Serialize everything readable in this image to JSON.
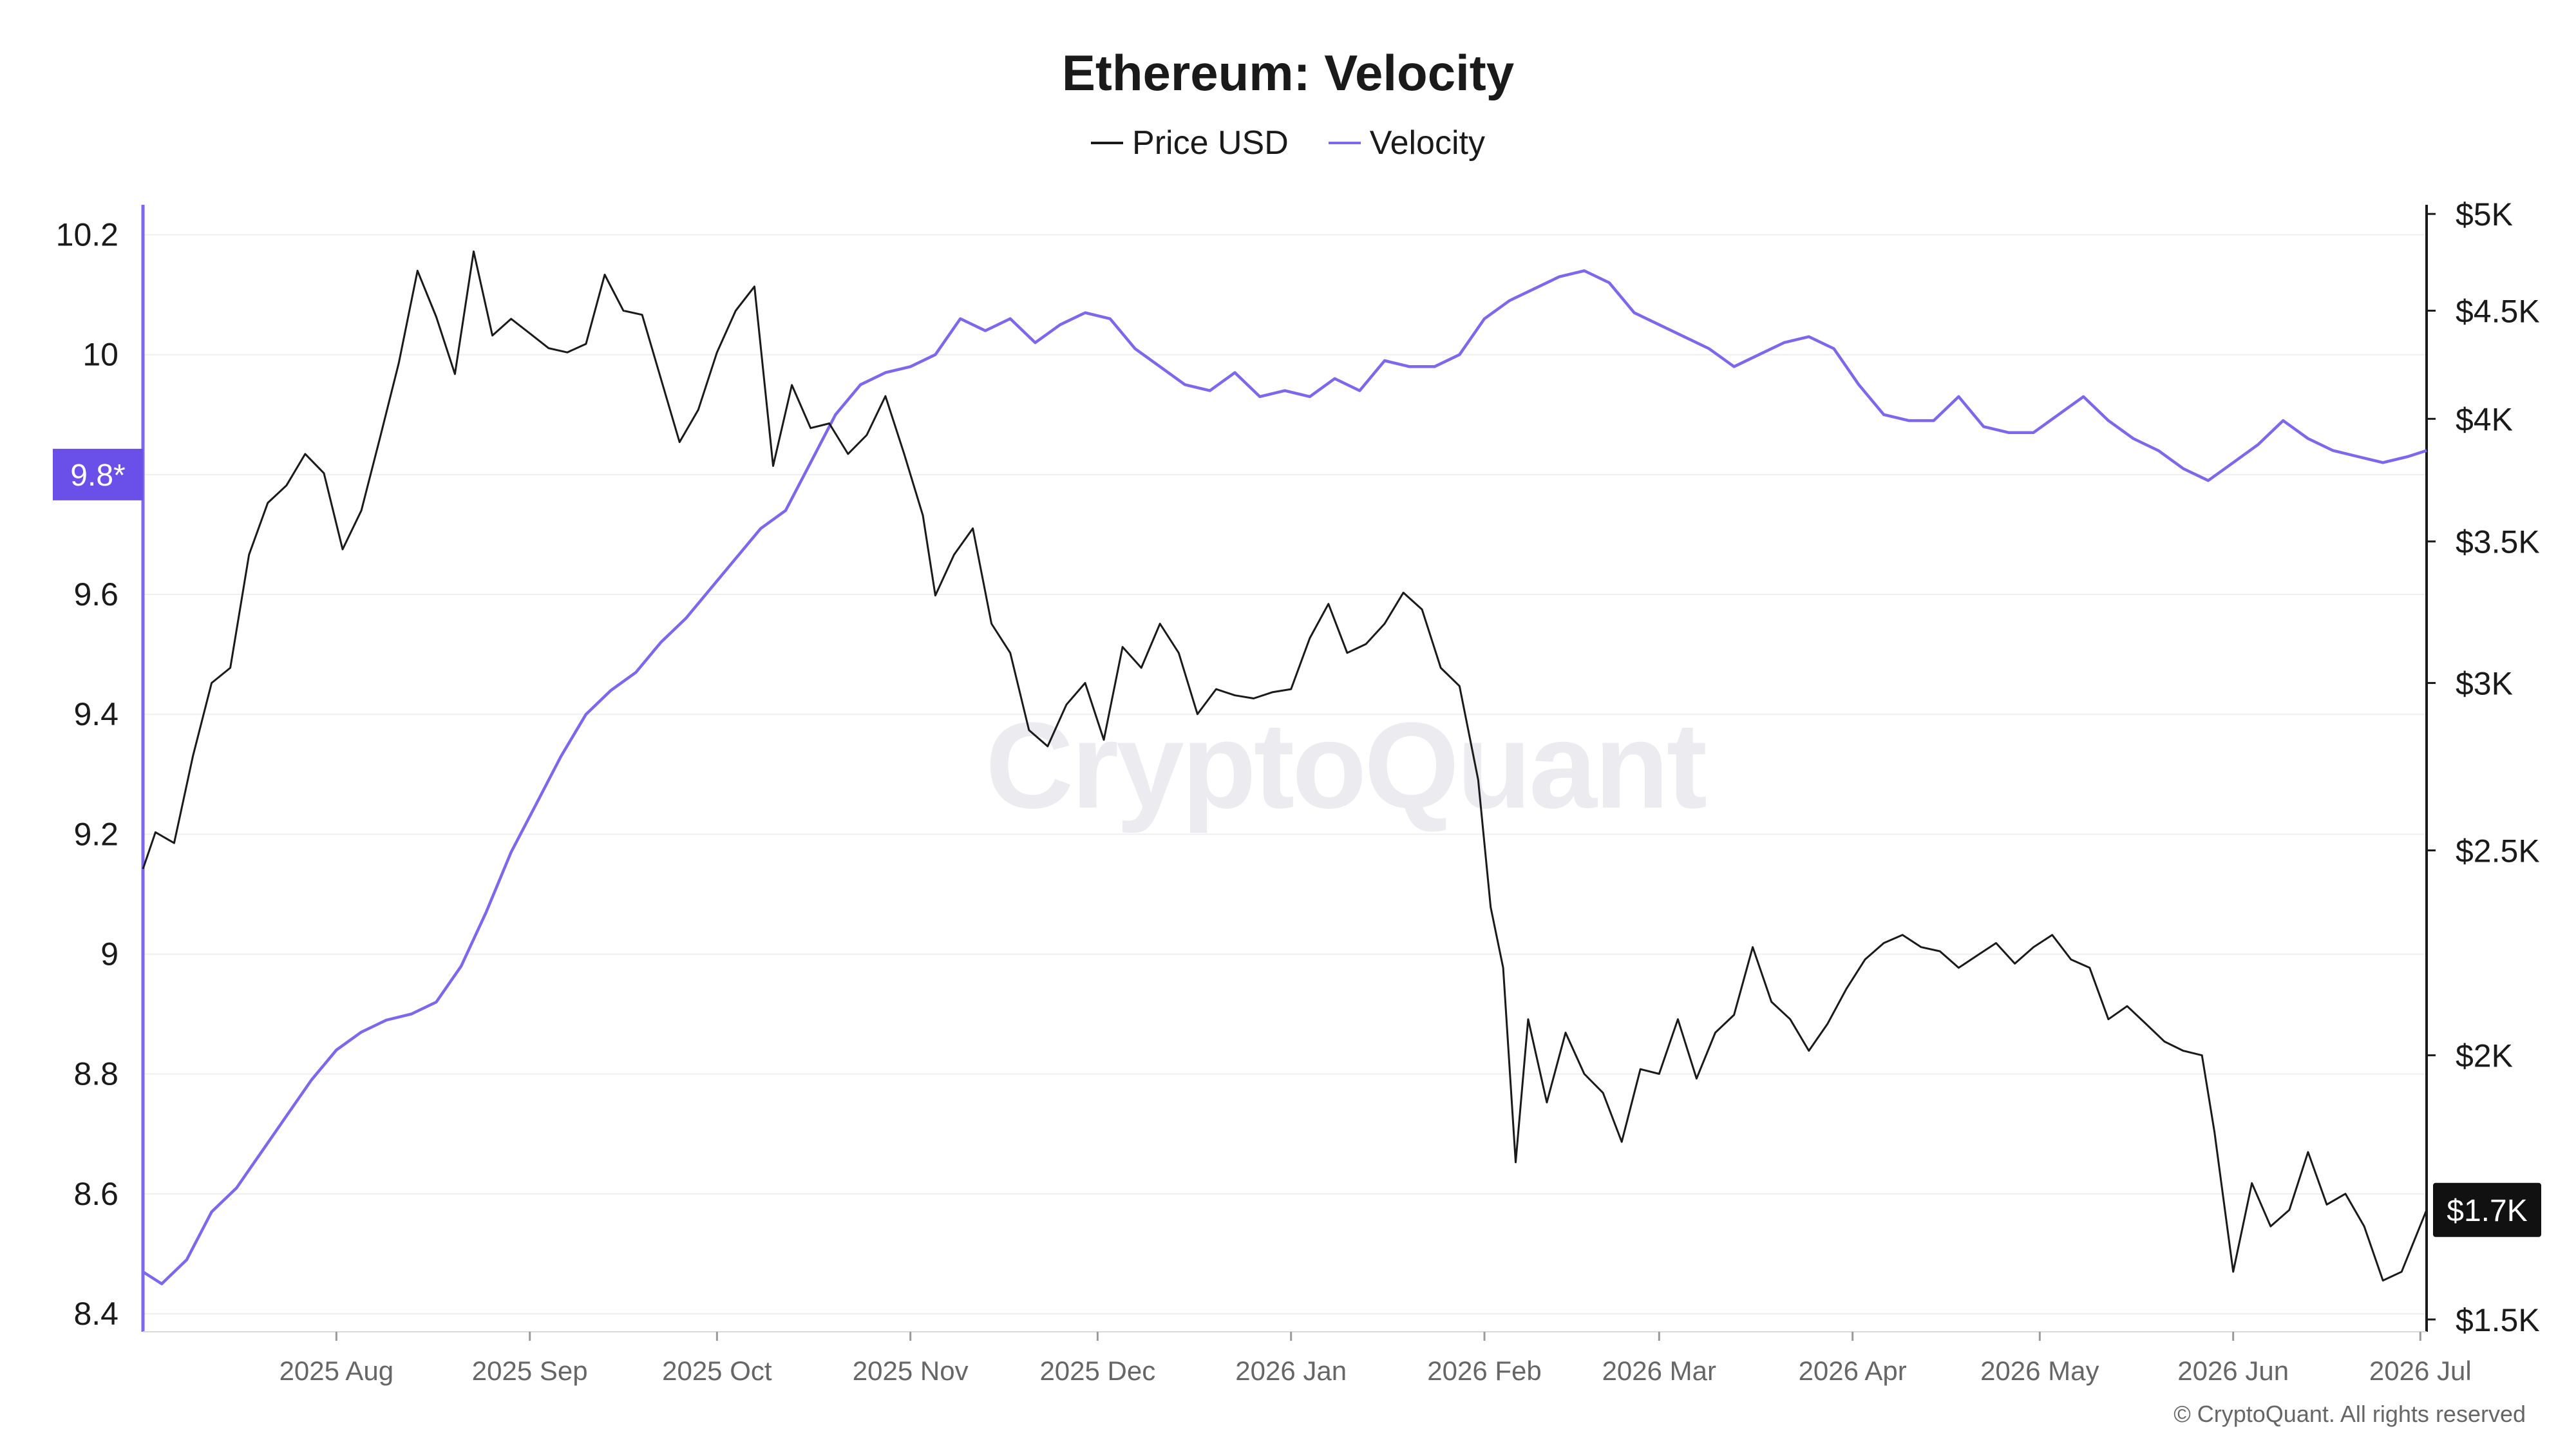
{
  "title": "Ethereum: Velocity",
  "legend": [
    {
      "label": "Price USD",
      "color": "#1a1a1a"
    },
    {
      "label": "Velocity",
      "color": "#7b68ee"
    }
  ],
  "watermark": "CryptoQuant",
  "copyright": "© CryptoQuant. All rights reserved",
  "colors": {
    "velocity": "#7b68ee",
    "velocity_marker": "#6a4fe8",
    "price": "#1a1a1a",
    "grid": "#efefef"
  },
  "chart_data": {
    "type": "line",
    "title": "Ethereum: Velocity",
    "x_start": "2025-07-01",
    "x_end": "2026-07-02",
    "x_ticks": [
      {
        "label": "2025 Aug",
        "date": "2025-08-01"
      },
      {
        "label": "2025 Sep",
        "date": "2025-09-01"
      },
      {
        "label": "2025 Oct",
        "date": "2025-10-01"
      },
      {
        "label": "2025 Nov",
        "date": "2025-11-01"
      },
      {
        "label": "2025 Dec",
        "date": "2025-12-01"
      },
      {
        "label": "2026 Jan",
        "date": "2026-01-01"
      },
      {
        "label": "2026 Feb",
        "date": "2026-02-01"
      },
      {
        "label": "2026 Mar",
        "date": "2026-03-01"
      },
      {
        "label": "2026 Apr",
        "date": "2026-04-01"
      },
      {
        "label": "2026 May",
        "date": "2026-05-01"
      },
      {
        "label": "2026 Jun",
        "date": "2026-06-01"
      },
      {
        "label": "2026 Jul",
        "date": "2026-07-01"
      }
    ],
    "y_left": {
      "ticks": [
        "10.2",
        "10",
        "9.8",
        "9.6",
        "9.4",
        "9.2",
        "9",
        "8.8",
        "8.6",
        "8.4"
      ],
      "range": [
        8.37,
        10.25
      ]
    },
    "y_right": {
      "scale": "log",
      "ticks": [
        {
          "label": "$5K",
          "value": 5000
        },
        {
          "label": "$4.5K",
          "value": 4500
        },
        {
          "label": "$4K",
          "value": 4000
        },
        {
          "label": "$3.5K",
          "value": 3500
        },
        {
          "label": "$3K",
          "value": 3000
        },
        {
          "label": "$2.5K",
          "value": 2500
        },
        {
          "label": "$2K",
          "value": 2000
        },
        {
          "label": "$1.5K",
          "value": 1500
        }
      ],
      "range": [
        1480,
        5050
      ]
    },
    "current_markers": {
      "velocity_label": "9.8*",
      "velocity_value": 9.8,
      "price_label": "$1.7K",
      "price_value": 1690
    },
    "grid": true,
    "series": [
      {
        "name": "Velocity",
        "axis": "left",
        "color": "#7b68ee",
        "points": [
          [
            "2025-07-01",
            8.47
          ],
          [
            "2025-07-04",
            8.45
          ],
          [
            "2025-07-08",
            8.49
          ],
          [
            "2025-07-12",
            8.57
          ],
          [
            "2025-07-16",
            8.61
          ],
          [
            "2025-07-20",
            8.67
          ],
          [
            "2025-07-24",
            8.73
          ],
          [
            "2025-07-28",
            8.79
          ],
          [
            "2025-08-01",
            8.84
          ],
          [
            "2025-08-05",
            8.87
          ],
          [
            "2025-08-09",
            8.89
          ],
          [
            "2025-08-13",
            8.9
          ],
          [
            "2025-08-17",
            8.92
          ],
          [
            "2025-08-21",
            8.98
          ],
          [
            "2025-08-25",
            9.07
          ],
          [
            "2025-08-29",
            9.17
          ],
          [
            "2025-09-02",
            9.25
          ],
          [
            "2025-09-06",
            9.33
          ],
          [
            "2025-09-10",
            9.4
          ],
          [
            "2025-09-14",
            9.44
          ],
          [
            "2025-09-18",
            9.47
          ],
          [
            "2025-09-22",
            9.52
          ],
          [
            "2025-09-26",
            9.56
          ],
          [
            "2025-09-30",
            9.61
          ],
          [
            "2025-10-04",
            9.66
          ],
          [
            "2025-10-08",
            9.71
          ],
          [
            "2025-10-12",
            9.74
          ],
          [
            "2025-10-16",
            9.82
          ],
          [
            "2025-10-20",
            9.9
          ],
          [
            "2025-10-24",
            9.95
          ],
          [
            "2025-10-28",
            9.97
          ],
          [
            "2025-11-01",
            9.98
          ],
          [
            "2025-11-05",
            10.0
          ],
          [
            "2025-11-09",
            10.06
          ],
          [
            "2025-11-13",
            10.04
          ],
          [
            "2025-11-17",
            10.06
          ],
          [
            "2025-11-21",
            10.02
          ],
          [
            "2025-11-25",
            10.05
          ],
          [
            "2025-11-29",
            10.07
          ],
          [
            "2025-12-03",
            10.06
          ],
          [
            "2025-12-07",
            10.01
          ],
          [
            "2025-12-11",
            9.98
          ],
          [
            "2025-12-15",
            9.95
          ],
          [
            "2025-12-19",
            9.94
          ],
          [
            "2025-12-23",
            9.97
          ],
          [
            "2025-12-27",
            9.93
          ],
          [
            "2025-12-31",
            9.94
          ],
          [
            "2026-01-04",
            9.93
          ],
          [
            "2026-01-08",
            9.96
          ],
          [
            "2026-01-12",
            9.94
          ],
          [
            "2026-01-16",
            9.99
          ],
          [
            "2026-01-20",
            9.98
          ],
          [
            "2026-01-24",
            9.98
          ],
          [
            "2026-01-28",
            10.0
          ],
          [
            "2026-02-01",
            10.06
          ],
          [
            "2026-02-05",
            10.09
          ],
          [
            "2026-02-09",
            10.11
          ],
          [
            "2026-02-13",
            10.13
          ],
          [
            "2026-02-17",
            10.14
          ],
          [
            "2026-02-21",
            10.12
          ],
          [
            "2026-02-25",
            10.07
          ],
          [
            "2026-03-01",
            10.05
          ],
          [
            "2026-03-05",
            10.03
          ],
          [
            "2026-03-09",
            10.01
          ],
          [
            "2026-03-13",
            9.98
          ],
          [
            "2026-03-17",
            10.0
          ],
          [
            "2026-03-21",
            10.02
          ],
          [
            "2026-03-25",
            10.03
          ],
          [
            "2026-03-29",
            10.01
          ],
          [
            "2026-04-02",
            9.95
          ],
          [
            "2026-04-06",
            9.9
          ],
          [
            "2026-04-10",
            9.89
          ],
          [
            "2026-04-14",
            9.89
          ],
          [
            "2026-04-18",
            9.93
          ],
          [
            "2026-04-22",
            9.88
          ],
          [
            "2026-04-26",
            9.87
          ],
          [
            "2026-04-30",
            9.87
          ],
          [
            "2026-05-04",
            9.9
          ],
          [
            "2026-05-08",
            9.93
          ],
          [
            "2026-05-12",
            9.89
          ],
          [
            "2026-05-16",
            9.86
          ],
          [
            "2026-05-20",
            9.84
          ],
          [
            "2026-05-24",
            9.81
          ],
          [
            "2026-05-28",
            9.79
          ],
          [
            "2026-06-01",
            9.82
          ],
          [
            "2026-06-05",
            9.85
          ],
          [
            "2026-06-09",
            9.89
          ],
          [
            "2026-06-13",
            9.86
          ],
          [
            "2026-06-17",
            9.84
          ],
          [
            "2026-06-21",
            9.83
          ],
          [
            "2026-06-25",
            9.82
          ],
          [
            "2026-06-29",
            9.83
          ],
          [
            "2026-07-02",
            9.84
          ]
        ]
      },
      {
        "name": "Price USD",
        "axis": "right",
        "color": "#1a1a1a",
        "points": [
          [
            "2025-07-01",
            2450
          ],
          [
            "2025-07-03",
            2550
          ],
          [
            "2025-07-06",
            2520
          ],
          [
            "2025-07-09",
            2770
          ],
          [
            "2025-07-12",
            3000
          ],
          [
            "2025-07-15",
            3050
          ],
          [
            "2025-07-18",
            3450
          ],
          [
            "2025-07-21",
            3650
          ],
          [
            "2025-07-24",
            3720
          ],
          [
            "2025-07-27",
            3850
          ],
          [
            "2025-07-30",
            3770
          ],
          [
            "2025-08-02",
            3470
          ],
          [
            "2025-08-05",
            3620
          ],
          [
            "2025-08-08",
            3920
          ],
          [
            "2025-08-11",
            4250
          ],
          [
            "2025-08-14",
            4700
          ],
          [
            "2025-08-17",
            4470
          ],
          [
            "2025-08-20",
            4200
          ],
          [
            "2025-08-23",
            4800
          ],
          [
            "2025-08-26",
            4380
          ],
          [
            "2025-08-29",
            4460
          ],
          [
            "2025-09-01",
            4390
          ],
          [
            "2025-09-04",
            4320
          ],
          [
            "2025-09-07",
            4300
          ],
          [
            "2025-09-10",
            4340
          ],
          [
            "2025-09-13",
            4680
          ],
          [
            "2025-09-16",
            4500
          ],
          [
            "2025-09-19",
            4480
          ],
          [
            "2025-09-22",
            4180
          ],
          [
            "2025-09-25",
            3900
          ],
          [
            "2025-09-28",
            4040
          ],
          [
            "2025-10-01",
            4300
          ],
          [
            "2025-10-04",
            4500
          ],
          [
            "2025-10-07",
            4620
          ],
          [
            "2025-10-10",
            3800
          ],
          [
            "2025-10-13",
            4150
          ],
          [
            "2025-10-16",
            3960
          ],
          [
            "2025-10-19",
            3980
          ],
          [
            "2025-10-22",
            3850
          ],
          [
            "2025-10-25",
            3930
          ],
          [
            "2025-10-28",
            4100
          ],
          [
            "2025-10-31",
            3850
          ],
          [
            "2025-11-03",
            3600
          ],
          [
            "2025-11-05",
            3300
          ],
          [
            "2025-11-08",
            3450
          ],
          [
            "2025-11-11",
            3550
          ],
          [
            "2025-11-14",
            3200
          ],
          [
            "2025-11-17",
            3100
          ],
          [
            "2025-11-20",
            2850
          ],
          [
            "2025-11-23",
            2800
          ],
          [
            "2025-11-26",
            2930
          ],
          [
            "2025-11-29",
            3000
          ],
          [
            "2025-12-02",
            2820
          ],
          [
            "2025-12-05",
            3120
          ],
          [
            "2025-12-08",
            3050
          ],
          [
            "2025-12-11",
            3200
          ],
          [
            "2025-12-14",
            3100
          ],
          [
            "2025-12-17",
            2900
          ],
          [
            "2025-12-20",
            2980
          ],
          [
            "2025-12-23",
            2960
          ],
          [
            "2025-12-26",
            2950
          ],
          [
            "2025-12-29",
            2970
          ],
          [
            "2026-01-01",
            2980
          ],
          [
            "2026-01-04",
            3150
          ],
          [
            "2026-01-07",
            3270
          ],
          [
            "2026-01-10",
            3100
          ],
          [
            "2026-01-13",
            3130
          ],
          [
            "2026-01-16",
            3200
          ],
          [
            "2026-01-19",
            3310
          ],
          [
            "2026-01-22",
            3250
          ],
          [
            "2026-01-25",
            3050
          ],
          [
            "2026-01-28",
            2990
          ],
          [
            "2026-01-31",
            2700
          ],
          [
            "2026-02-02",
            2350
          ],
          [
            "2026-02-04",
            2200
          ],
          [
            "2026-02-06",
            1780
          ],
          [
            "2026-02-08",
            2080
          ],
          [
            "2026-02-11",
            1900
          ],
          [
            "2026-02-14",
            2050
          ],
          [
            "2026-02-17",
            1960
          ],
          [
            "2026-02-20",
            1920
          ],
          [
            "2026-02-23",
            1820
          ],
          [
            "2026-02-26",
            1970
          ],
          [
            "2026-03-01",
            1960
          ],
          [
            "2026-03-04",
            2080
          ],
          [
            "2026-03-07",
            1950
          ],
          [
            "2026-03-10",
            2050
          ],
          [
            "2026-03-13",
            2090
          ],
          [
            "2026-03-16",
            2250
          ],
          [
            "2026-03-19",
            2120
          ],
          [
            "2026-03-22",
            2080
          ],
          [
            "2026-03-25",
            2010
          ],
          [
            "2026-03-28",
            2070
          ],
          [
            "2026-03-31",
            2150
          ],
          [
            "2026-04-03",
            2220
          ],
          [
            "2026-04-06",
            2260
          ],
          [
            "2026-04-09",
            2280
          ],
          [
            "2026-04-12",
            2250
          ],
          [
            "2026-04-15",
            2240
          ],
          [
            "2026-04-18",
            2200
          ],
          [
            "2026-04-21",
            2230
          ],
          [
            "2026-04-24",
            2260
          ],
          [
            "2026-04-27",
            2210
          ],
          [
            "2026-04-30",
            2250
          ],
          [
            "2026-05-03",
            2280
          ],
          [
            "2026-05-06",
            2220
          ],
          [
            "2026-05-09",
            2200
          ],
          [
            "2026-05-12",
            2080
          ],
          [
            "2026-05-15",
            2110
          ],
          [
            "2026-05-18",
            2070
          ],
          [
            "2026-05-21",
            2030
          ],
          [
            "2026-05-24",
            2010
          ],
          [
            "2026-05-27",
            2000
          ],
          [
            "2026-05-29",
            1840
          ],
          [
            "2026-06-01",
            1580
          ],
          [
            "2026-06-04",
            1740
          ],
          [
            "2026-06-07",
            1660
          ],
          [
            "2026-06-10",
            1690
          ],
          [
            "2026-06-13",
            1800
          ],
          [
            "2026-06-16",
            1700
          ],
          [
            "2026-06-19",
            1720
          ],
          [
            "2026-06-22",
            1660
          ],
          [
            "2026-06-25",
            1565
          ],
          [
            "2026-06-28",
            1580
          ],
          [
            "2026-07-02",
            1690
          ]
        ]
      }
    ]
  }
}
